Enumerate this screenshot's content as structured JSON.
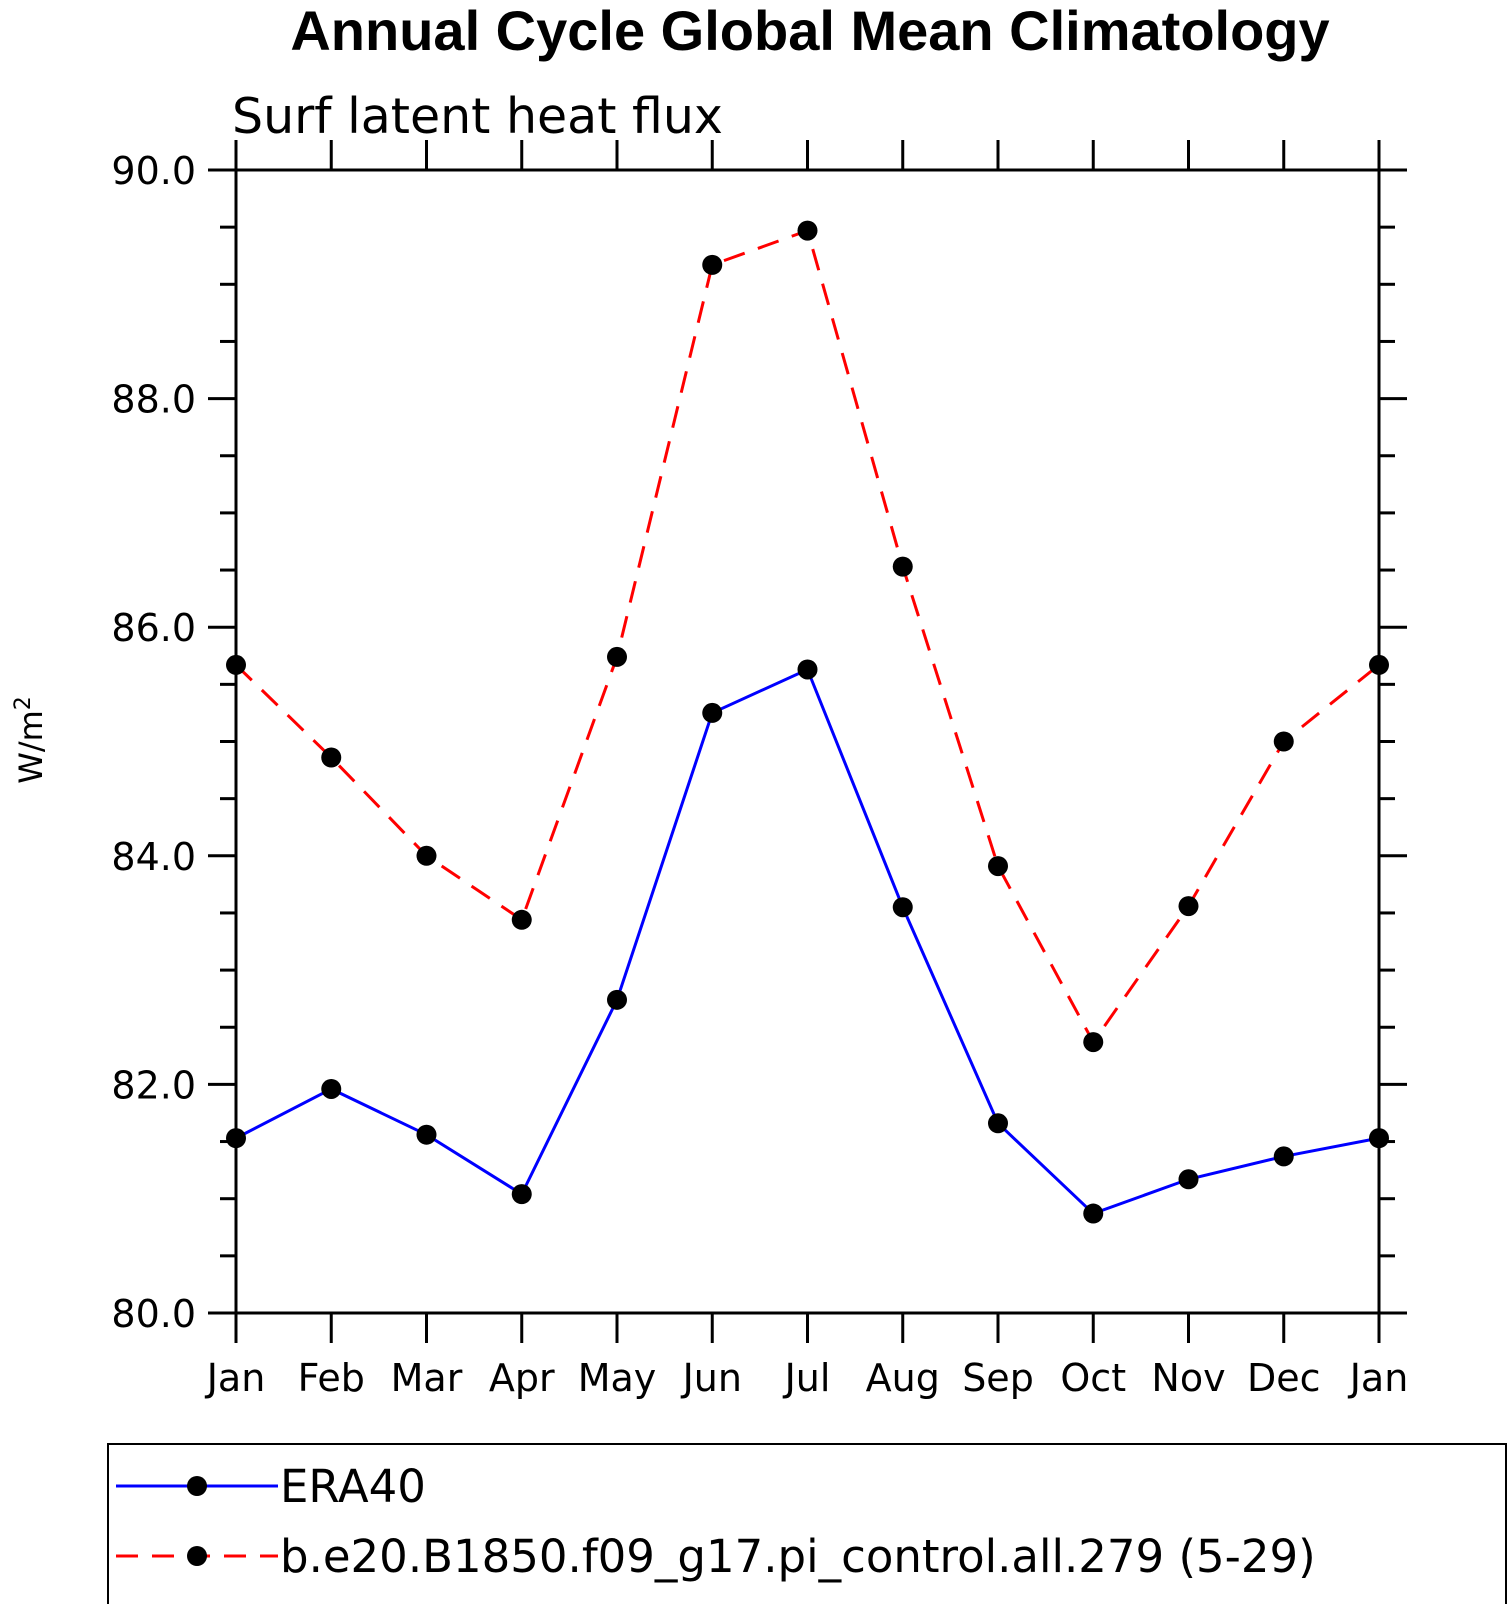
{
  "chart_data": {
    "type": "line",
    "title": "Annual Cycle Global Mean Climatology",
    "subtitle": "Surf latent heat flux",
    "xlabel": "",
    "ylabel": "W/m",
    "ylabel_superscript": "2",
    "ylim": [
      80.0,
      90.0
    ],
    "yticks": [
      "80.0",
      "82.0",
      "84.0",
      "86.0",
      "88.0",
      "90.0"
    ],
    "categories": [
      "Jan",
      "Feb",
      "Mar",
      "Apr",
      "May",
      "Jun",
      "Jul",
      "Aug",
      "Sep",
      "Oct",
      "Nov",
      "Dec",
      "Jan"
    ],
    "series": [
      {
        "name": "ERA40",
        "color": "#0000ff",
        "dash": "solid",
        "marker": "filled-circle",
        "values": [
          81.53,
          81.96,
          81.56,
          81.04,
          82.74,
          85.25,
          85.63,
          83.55,
          81.66,
          80.87,
          81.17,
          81.37,
          81.53
        ]
      },
      {
        "name": "b.e20.B1850.f09_g17.pi_control.all.279 (5-29)",
        "color": "#ff0000",
        "dash": "dashed",
        "marker": "filled-circle",
        "values": [
          85.67,
          84.86,
          84.0,
          83.44,
          85.74,
          89.17,
          89.47,
          86.53,
          83.91,
          82.37,
          83.56,
          85.0,
          85.67
        ]
      }
    ],
    "legend_position": "bottom"
  }
}
